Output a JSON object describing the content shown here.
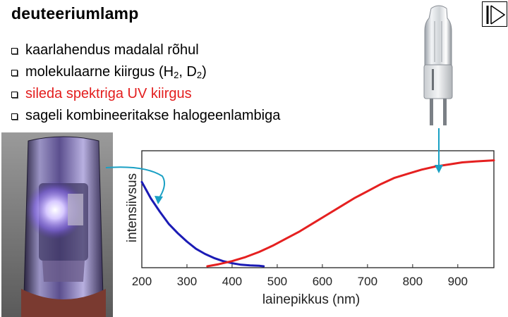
{
  "slide": {
    "title": "deuteeriumlamp",
    "bullets": [
      {
        "text": "kaarlahendus madalal rõhul"
      },
      {
        "text": "molekulaarne kiirgus (H",
        "sub1": "2",
        "mid": ", D",
        "sub2": "2",
        "end": ")"
      },
      {
        "text": "sileda spektriga UV kiirgus",
        "color": "#e31e1e"
      },
      {
        "text": "sageli kombineeritakse halogeenlambiga"
      }
    ]
  },
  "colors": {
    "deuterium_curve": "#1b1bb5",
    "halogen_curve": "#e52020",
    "arrow": "#1aa0c4",
    "text_red": "#e31e1e"
  },
  "icons": {
    "nav": "back-to-start-icon",
    "deuterium_photo": "deuterium-lamp-photo",
    "halogen_photo": "halogen-bulb-photo"
  },
  "chart_data": {
    "type": "line",
    "xlabel": "lainepikkus (nm)",
    "ylabel": "intensiivsus",
    "xlim": [
      200,
      980
    ],
    "xticks": [
      "200",
      "300",
      "400",
      "500",
      "600",
      "700",
      "800",
      "900"
    ],
    "grid": false,
    "series": [
      {
        "x": [
          200,
          210,
          220,
          240,
          260,
          280,
          300,
          320,
          340,
          360,
          380,
          400,
          420,
          440,
          460,
          470
        ],
        "y": [
          0.82,
          0.74,
          0.66,
          0.53,
          0.41,
          0.32,
          0.24,
          0.17,
          0.12,
          0.08,
          0.05,
          0.03,
          0.015,
          0.008,
          0.005,
          0.0
        ],
        "color": "#1b1bb5"
      },
      {
        "x": [
          345,
          370,
          400,
          430,
          460,
          490,
          520,
          550,
          580,
          610,
          640,
          670,
          700,
          730,
          760,
          790,
          820,
          850,
          880,
          910,
          940,
          980
        ],
        "y": [
          0.0,
          0.02,
          0.05,
          0.09,
          0.14,
          0.2,
          0.27,
          0.34,
          0.42,
          0.5,
          0.58,
          0.66,
          0.73,
          0.8,
          0.86,
          0.9,
          0.94,
          0.97,
          0.99,
          1.01,
          1.02,
          1.03
        ],
        "color": "#e52020"
      }
    ]
  }
}
